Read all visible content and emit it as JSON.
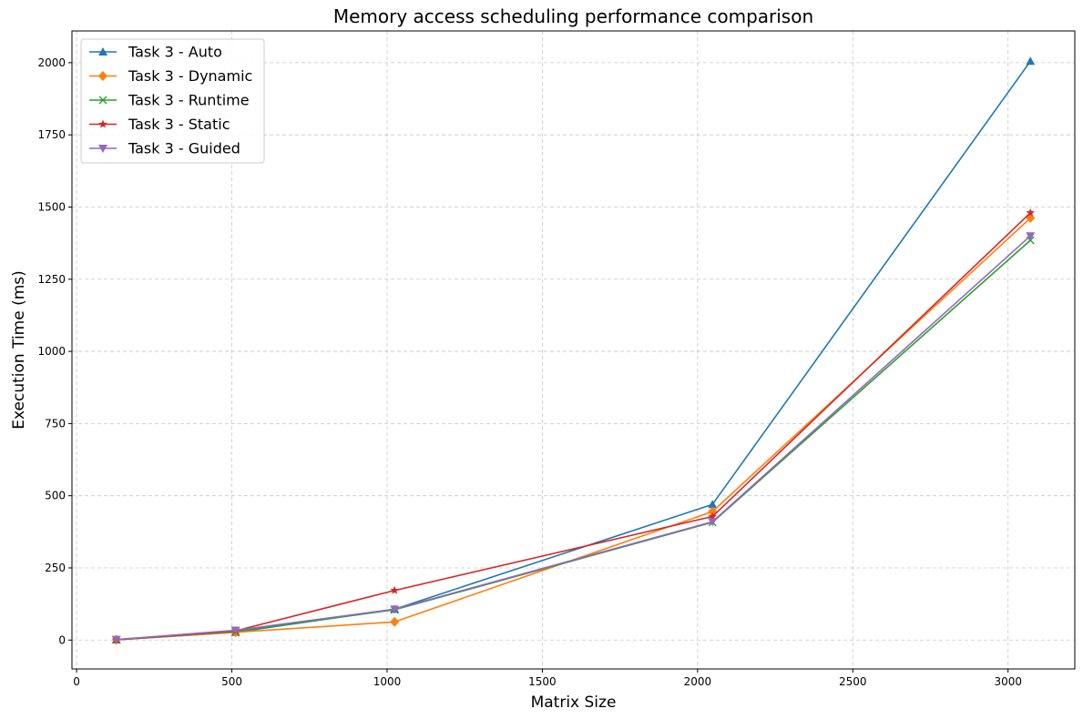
{
  "chart_data": {
    "type": "line",
    "title": "Memory access scheduling performance comparison",
    "xlabel": "Matrix Size",
    "ylabel": "Execution Time (ms)",
    "xlim": [
      -15,
      3215
    ],
    "ylim": [
      -100,
      2110
    ],
    "xticks": [
      0,
      500,
      1000,
      1500,
      2000,
      2500,
      3000
    ],
    "yticks": [
      0,
      250,
      500,
      750,
      1000,
      1250,
      1500,
      1750,
      2000
    ],
    "grid": true,
    "legend_position": "top-left",
    "x": [
      128,
      512,
      1024,
      2048,
      3072
    ],
    "series": [
      {
        "name": "Task 3 - Auto",
        "color": "#1f77b4",
        "marker": "triangle-up",
        "values": [
          1,
          27,
          107,
          470,
          2005
        ]
      },
      {
        "name": "Task 3 - Dynamic",
        "color": "#ff7f0e",
        "marker": "diamond",
        "values": [
          1,
          27,
          63,
          445,
          1462
        ]
      },
      {
        "name": "Task 3 - Runtime",
        "color": "#2ca02c",
        "marker": "x",
        "values": [
          1,
          30,
          105,
          408,
          1385
        ]
      },
      {
        "name": "Task 3 - Static",
        "color": "#d62728",
        "marker": "star",
        "values": [
          1,
          32,
          172,
          428,
          1480
        ]
      },
      {
        "name": "Task 3 - Guided",
        "color": "#9467bd",
        "marker": "triangle-down",
        "values": [
          2,
          34,
          107,
          410,
          1400
        ]
      }
    ]
  }
}
